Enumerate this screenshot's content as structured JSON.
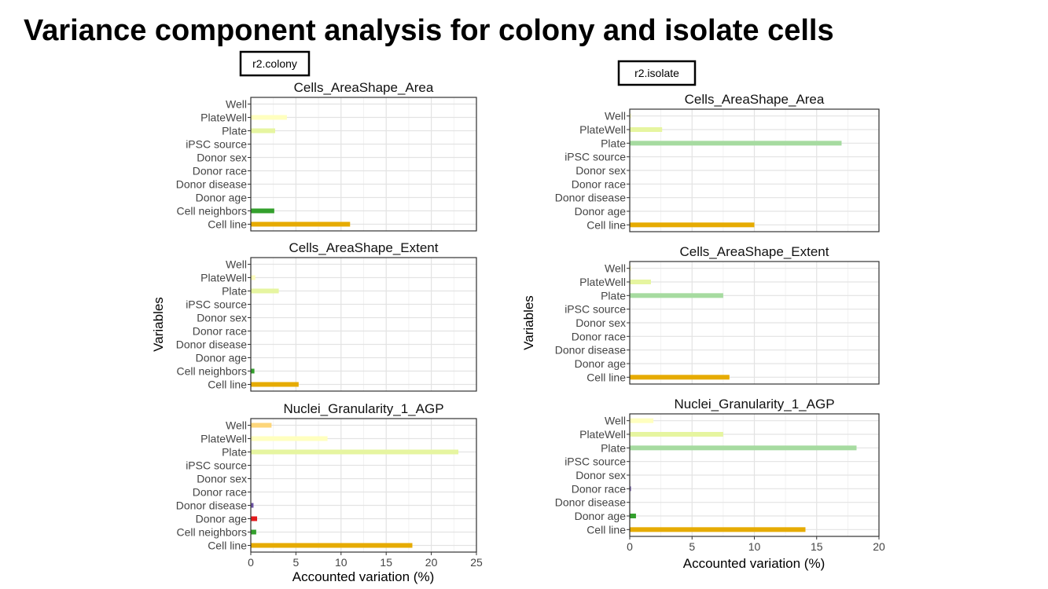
{
  "title": "Variance component analysis for colony and isolate cells",
  "chart_data": [
    {
      "type": "bar",
      "orientation": "horizontal",
      "group_label": "r2.colony",
      "ylabel": "Variables",
      "xlabel": "Accounted variation (%)",
      "xlim": [
        0,
        25
      ],
      "xticks": [
        0,
        5,
        10,
        15,
        20,
        25
      ],
      "grid": true,
      "categories": [
        "Well",
        "PlateWell",
        "Plate",
        "iPSC source",
        "Donor sex",
        "Donor race",
        "Donor disease",
        "Donor age",
        "Cell neighbors",
        "Cell line"
      ],
      "category_colors": [
        "#fdd67a",
        "#ffffbf",
        "#e6f5a0",
        "#a6cee3",
        "#1f78b4",
        "#b2df8a",
        "#6a51a3",
        "#e31a1c",
        "#33a02c",
        "#e6ab02"
      ],
      "facets": [
        {
          "title": "Cells_AreaShape_Area",
          "values": [
            0,
            4.0,
            2.7,
            0,
            0,
            0,
            0,
            0,
            2.6,
            11.0
          ]
        },
        {
          "title": "Cells_AreaShape_Extent",
          "values": [
            0,
            0.5,
            3.1,
            0,
            0,
            0,
            0,
            0,
            0.4,
            5.3
          ]
        },
        {
          "title": "Nuclei_Granularity_1_AGP",
          "values": [
            2.3,
            8.5,
            23.0,
            0,
            0,
            0,
            0.3,
            0.7,
            0.6,
            17.9
          ]
        }
      ]
    },
    {
      "type": "bar",
      "orientation": "horizontal",
      "group_label": "r2.isolate",
      "ylabel": "Variables",
      "xlabel": "Accounted variation (%)",
      "xlim": [
        0,
        20
      ],
      "xticks": [
        0,
        5,
        10,
        15,
        20
      ],
      "grid": true,
      "categories": [
        "Well",
        "PlateWell",
        "Plate",
        "iPSC source",
        "Donor sex",
        "Donor race",
        "Donor disease",
        "Donor age",
        "Cell neighbors",
        "Cell line"
      ],
      "category_colors": [
        "#ffffbf",
        "#e6f5a0",
        "#a6dba0",
        "#a6cee3",
        "#1f78b4",
        "#6a51a3",
        "#fb9a99",
        "#33a02c",
        "#e31a1c",
        "#e6ab02"
      ],
      "facets": [
        {
          "title": "Cells_AreaShape_Area",
          "categories": [
            "Well",
            "PlateWell",
            "Plate",
            "iPSC source",
            "Donor sex",
            "Donor race",
            "Donor disease",
            "Donor age",
            "Cell line"
          ],
          "values": [
            0.1,
            2.6,
            17.0,
            0,
            0,
            0,
            0,
            0,
            10.0
          ]
        },
        {
          "title": "Cells_AreaShape_Extent",
          "categories": [
            "Well",
            "PlateWell",
            "Plate",
            "iPSC source",
            "Donor sex",
            "Donor race",
            "Donor disease",
            "Donor age",
            "Cell line"
          ],
          "values": [
            0.1,
            1.7,
            7.5,
            0,
            0,
            0,
            0,
            0,
            8.0
          ]
        },
        {
          "title": "Nuclei_Granularity_1_AGP",
          "categories": [
            "Well",
            "PlateWell",
            "Plate",
            "iPSC source",
            "Donor sex",
            "Donor race",
            "Donor disease",
            "Donor age",
            "Cell line"
          ],
          "values": [
            1.9,
            7.5,
            18.2,
            0,
            0,
            0.1,
            0,
            0.5,
            14.1
          ]
        }
      ]
    }
  ]
}
